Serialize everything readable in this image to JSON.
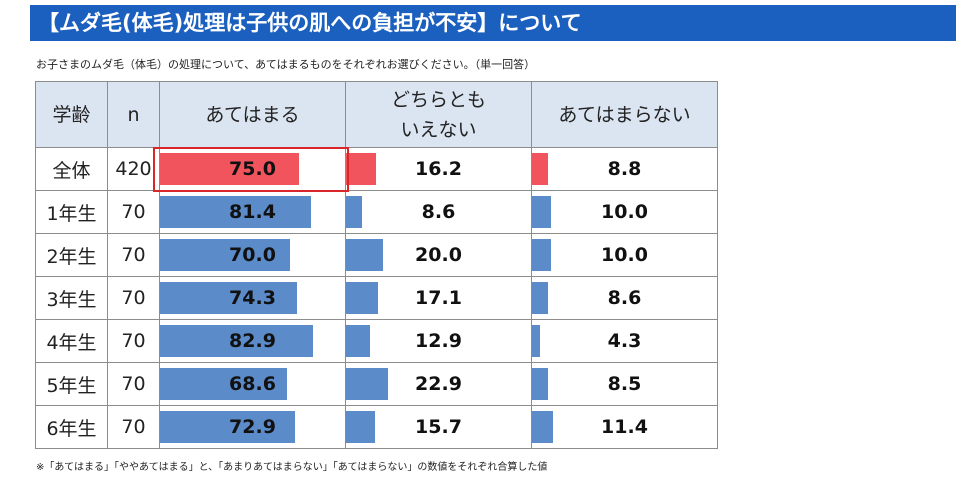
{
  "title": "【ムダ毛(体毛)処理は子供の肌への負担が不安】について",
  "question": "お子さまのムダ毛（体毛）の処理について、あてはまるものをそれぞれお選びください。（単一回答）",
  "footnote": "※「あてはまる」「ややあてはまる」と、「あまりあてはまらない」「あてはまらない」の数値をそれぞれ合算した値",
  "colors": {
    "total": "#f2545e",
    "grade": "#5b8bc9",
    "header_bg": "#dbe4f1",
    "highlight": "#d9262b",
    "title_bg": "#1b5fbf"
  },
  "chart_data": {
    "type": "table",
    "columns": [
      "学齢",
      "n",
      "あてはまる",
      "どちらとも\nいえない",
      "あてはまらない"
    ],
    "bar_max": 100,
    "rows": [
      {
        "label": "全体",
        "n": "420",
        "values": [
          "75.0",
          "16.2",
          "8.8"
        ]
      },
      {
        "label": "1年生",
        "n": "70",
        "values": [
          "81.4",
          "8.6",
          "10.0"
        ]
      },
      {
        "label": "2年生",
        "n": "70",
        "values": [
          "70.0",
          "20.0",
          "10.0"
        ]
      },
      {
        "label": "3年生",
        "n": "70",
        "values": [
          "74.3",
          "17.1",
          "8.6"
        ]
      },
      {
        "label": "4年生",
        "n": "70",
        "values": [
          "82.9",
          "12.9",
          "4.3"
        ]
      },
      {
        "label": "5年生",
        "n": "70",
        "values": [
          "68.6",
          "22.9",
          "8.5"
        ]
      },
      {
        "label": "6年生",
        "n": "70",
        "values": [
          "72.9",
          "15.7",
          "11.4"
        ]
      }
    ]
  }
}
